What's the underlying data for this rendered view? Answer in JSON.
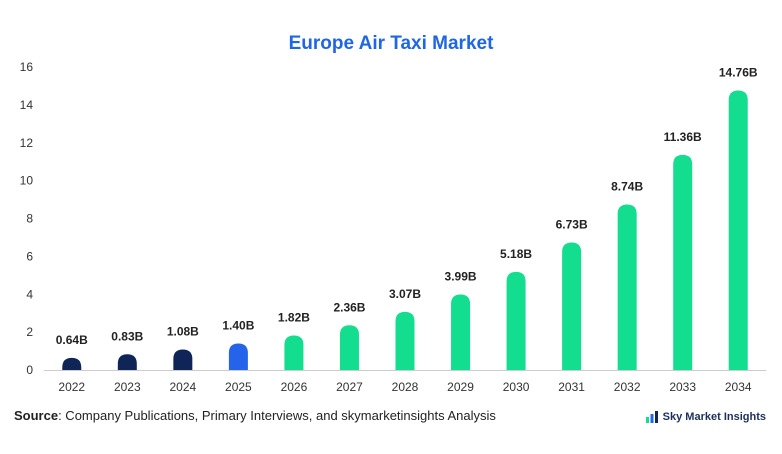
{
  "chart_data": {
    "type": "bar",
    "title": "Europe Air Taxi Market",
    "categories": [
      "2022",
      "2023",
      "2024",
      "2025",
      "2026",
      "2027",
      "2028",
      "2029",
      "2030",
      "2031",
      "2032",
      "2033",
      "2034"
    ],
    "values": [
      0.64,
      0.83,
      1.08,
      1.4,
      1.82,
      2.36,
      3.07,
      3.99,
      5.18,
      6.73,
      8.74,
      11.36,
      14.76
    ],
    "data_labels": [
      "0.64B",
      "0.83B",
      "1.08B",
      "1.40B",
      "1.82B",
      "2.36B",
      "3.07B",
      "3.99B",
      "5.18B",
      "6.73B",
      "8.74B",
      "11.36B",
      "14.76B"
    ],
    "ylim": [
      0,
      16
    ],
    "yticks": [
      0,
      2,
      4,
      6,
      8,
      10,
      12,
      14,
      16
    ],
    "grid": false,
    "legend": "none",
    "colors": {
      "historical": "#0f2557",
      "current": "#2563eb",
      "forecast": "#13dd8e"
    },
    "bar_color_groups": [
      "historical",
      "historical",
      "historical",
      "current",
      "forecast",
      "forecast",
      "forecast",
      "forecast",
      "forecast",
      "forecast",
      "forecast",
      "forecast",
      "forecast"
    ]
  },
  "footer": {
    "source_label": "Source",
    "source_text": ": Company Publications, Primary Interviews, and skymarketinsights Analysis",
    "brand": "Sky Market Insights",
    "brand_icon": "sky-market-logo-icon"
  }
}
